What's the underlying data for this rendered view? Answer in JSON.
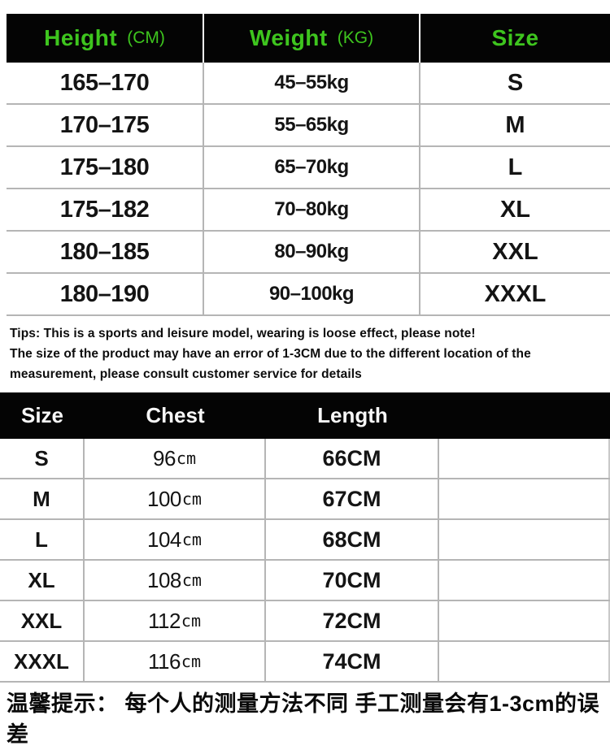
{
  "size_table_primary": {
    "header": {
      "height_label": "Height",
      "height_unit": "(CM)",
      "weight_label": "Weight",
      "weight_unit": "(KG)",
      "size_label": "Size"
    },
    "rows": [
      {
        "height": "165–170",
        "weight": "45–55kg",
        "size": "S"
      },
      {
        "height": "170–175",
        "weight": "55–65kg",
        "size": "M"
      },
      {
        "height": "175–180",
        "weight": "65–70kg",
        "size": "L"
      },
      {
        "height": "175–182",
        "weight": "70–80kg",
        "size": "XL"
      },
      {
        "height": "180–185",
        "weight": "80–90kg",
        "size": "XXL"
      },
      {
        "height": "180–190",
        "weight": "90–100kg",
        "size": "XXXL"
      }
    ]
  },
  "tips": {
    "line1": "Tips: This is a sports and leisure model, wearing is loose effect, please note!",
    "line2": "The size of the product may have an error of 1-3CM due to the different location of the",
    "line3": "measurement, please consult customer service for details"
  },
  "size_table_measurements": {
    "header": {
      "size": "Size",
      "chest": "Chest",
      "length": "Length"
    },
    "rows": [
      {
        "size": "S",
        "chest_value": "96",
        "chest_unit": "cm",
        "length": "66CM"
      },
      {
        "size": "M",
        "chest_value": "100",
        "chest_unit": "cm",
        "length": "67CM"
      },
      {
        "size": "L",
        "chest_value": "104",
        "chest_unit": "cm",
        "length": "68CM"
      },
      {
        "size": "XL",
        "chest_value": "108",
        "chest_unit": "cm",
        "length": "70CM"
      },
      {
        "size": "XXL",
        "chest_value": "112",
        "chest_unit": "cm",
        "length": "72CM"
      },
      {
        "size": "XXXL",
        "chest_value": "116",
        "chest_unit": "cm",
        "length": "74CM"
      }
    ]
  },
  "footer": {
    "note": "温馨提示： 每个人的测量方法不同 手工测量会有1-3cm的误差"
  },
  "colors": {
    "accent_green": "#3ec51e",
    "header_bg": "#040404",
    "grid_line": "#b5b5b5",
    "header_text_light": "#f7f7f7"
  }
}
